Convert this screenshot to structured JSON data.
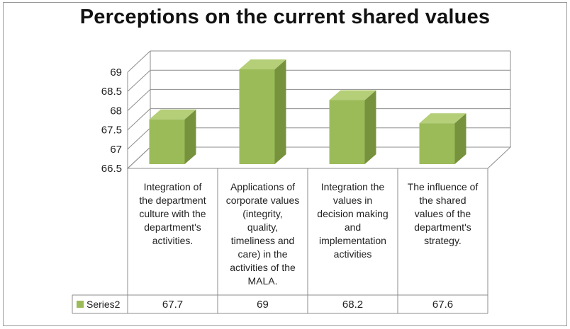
{
  "chart_data": {
    "type": "bar",
    "title": "Perceptions on the current shared values",
    "categories": [
      "Integration of the department culture with the department's activities.",
      "Applications of corporate values (integrity, quality, timeliness and care) in the activities of the MALA.",
      "Integration the values in decision making and implementation activities",
      "The influence of the shared values of the department's strategy."
    ],
    "category_lines": [
      [
        "Integration of",
        "the department",
        "culture with the",
        "department's",
        "activities."
      ],
      [
        "Applications of",
        "corporate values",
        "(integrity,",
        "quality,",
        "timeliness and",
        "care) in the",
        "activities of the",
        "MALA."
      ],
      [
        "Integration the",
        "values in",
        "decision making",
        "and",
        "implementation",
        "activities"
      ],
      [
        "The influence of",
        "the shared",
        "values of the",
        "department's",
        "strategy."
      ]
    ],
    "series": [
      {
        "name": "Series2",
        "values": [
          67.7,
          69,
          68.2,
          67.6
        ]
      }
    ],
    "data_table_values": [
      "67.7",
      "69",
      "68.2",
      "67.6"
    ],
    "yticks": [
      "66.5",
      "67",
      "67.5",
      "68",
      "68.5",
      "69"
    ],
    "ylim": [
      66.5,
      69
    ],
    "grid": true,
    "legend": "data-table",
    "colors": {
      "bar_front": "#9bbb59",
      "bar_side": "#76923c",
      "bar_top": "#b4cf78"
    }
  }
}
